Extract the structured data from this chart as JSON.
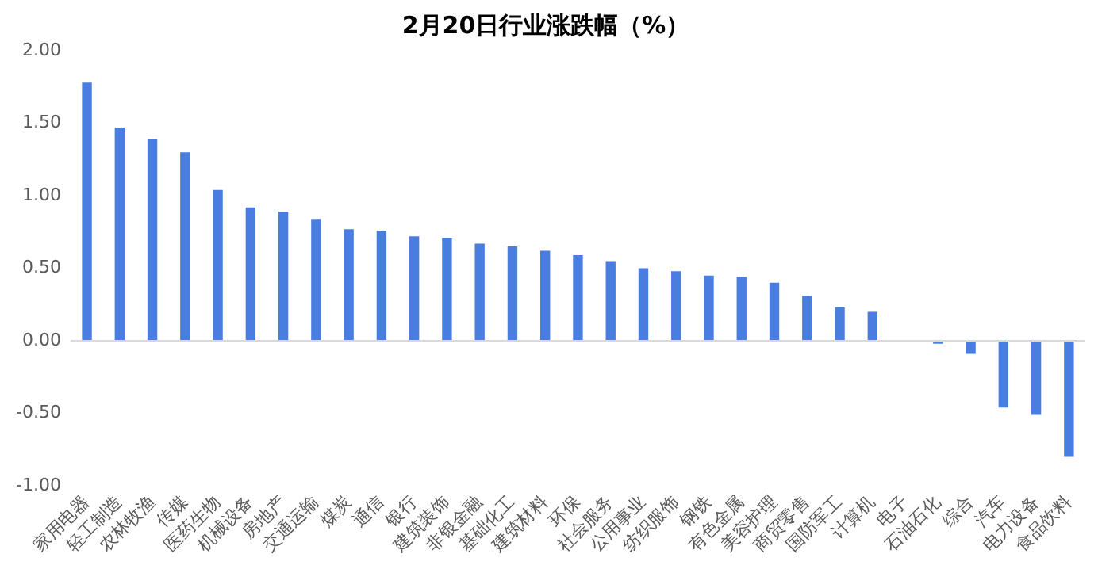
{
  "chart_data": {
    "type": "bar",
    "title": "2月20日行业涨跌幅（%）",
    "categories": [
      "家用电器",
      "轻工制造",
      "农林牧渔",
      "传媒",
      "医药生物",
      "机械设备",
      "房地产",
      "交通运输",
      "煤炭",
      "通信",
      "银行",
      "建筑装饰",
      "非银金融",
      "基础化工",
      "建筑材料",
      "环保",
      "社会服务",
      "公用事业",
      "纺织服饰",
      "钢铁",
      "有色金属",
      "美容护理",
      "商贸零售",
      "国防军工",
      "计算机",
      "电子",
      "石油石化",
      "综合",
      "汽车",
      "电力设备",
      "食品饮料"
    ],
    "values": [
      1.78,
      1.47,
      1.39,
      1.3,
      1.04,
      0.92,
      0.89,
      0.84,
      0.77,
      0.76,
      0.72,
      0.71,
      0.67,
      0.65,
      0.62,
      0.59,
      0.55,
      0.5,
      0.48,
      0.45,
      0.44,
      0.4,
      0.31,
      0.23,
      0.2,
      0,
      -0.02,
      -0.09,
      -0.46,
      -0.51,
      -0.8
    ],
    "color": "#4a7de0",
    "ylim": [
      -1,
      2
    ],
    "yticks": [
      {
        "value": -1,
        "label": "-1.00"
      },
      {
        "value": -0.5,
        "label": "-0.50"
      },
      {
        "value": 0,
        "label": "0.00"
      },
      {
        "value": 0.5,
        "label": "0.50"
      },
      {
        "value": 1,
        "label": "1.00"
      },
      {
        "value": 1.5,
        "label": "1.50"
      },
      {
        "value": 2,
        "label": "2.00"
      }
    ],
    "ref_lines": [
      {
        "axis": "y",
        "value": 0,
        "color": "#d9d9d9"
      }
    ],
    "grid": false,
    "legend": false
  }
}
